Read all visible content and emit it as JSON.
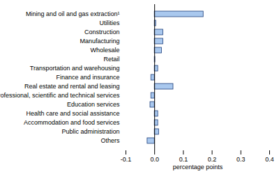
{
  "chart_data": {
    "type": "bar",
    "orientation": "horizontal",
    "categories": [
      "Mining and oil and gas extraction¹",
      "Utilities",
      "Construction",
      "Manufacturing",
      "Wholesale",
      "Retail",
      "Transportation and warehousing",
      "Finance and insurance",
      "Real estate and rental and leasing",
      "Professional, scientific and technical services",
      "Education services",
      "Health care and social assistance",
      "Accommodation and food services",
      "Public administration",
      "Others"
    ],
    "values": [
      0.17,
      0.005,
      0.03,
      0.03,
      0.025,
      0.002,
      0.012,
      -0.012,
      0.065,
      -0.012,
      -0.015,
      0.012,
      0.012,
      0.015,
      -0.025
    ],
    "color": "#a9c8ee",
    "xlabel": "percentage points",
    "xlim": [
      -0.1,
      0.4
    ],
    "xticks": [
      -0.1,
      {
        "value": 0,
        "label": "0.0"
      },
      0.1,
      0.2,
      0.3,
      0.4
    ],
    "grid": false
  }
}
